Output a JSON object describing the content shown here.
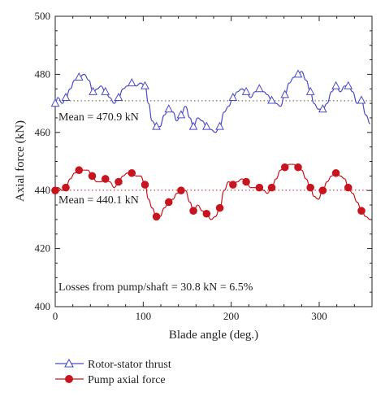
{
  "chart_data": {
    "type": "line",
    "xlabel": "Blade angle (deg.)",
    "ylabel": "Axial force (kN)",
    "xlim": [
      0,
      360
    ],
    "ylim": [
      400,
      500
    ],
    "xticks": [
      "0",
      "100",
      "200",
      "300"
    ],
    "yticks": [
      "400",
      "420",
      "440",
      "460",
      "480",
      "500"
    ],
    "grid": false,
    "legend_position": "bottom",
    "annotations": {
      "mean_top": "Mean = 470.9 kN",
      "mean_bottom": "Mean = 440.1 kN",
      "losses": "Losses from pump/shaft = 30.8 kN = 6.5%"
    },
    "mean_lines": [
      470.9,
      440.1
    ],
    "series": [
      {
        "name": "Rotor-stator thrust",
        "color": "#4a4ac8",
        "marker": "triangle",
        "x": [
          0,
          3,
          8,
          12,
          17,
          22,
          27,
          33,
          38,
          43,
          48,
          52,
          57,
          62,
          67,
          72,
          77,
          82,
          87,
          92,
          97,
          102,
          106,
          110,
          115,
          119,
          124,
          129,
          134,
          138,
          143,
          148,
          153,
          157,
          162,
          167,
          172,
          177,
          182,
          187,
          192,
          197,
          202,
          207,
          212,
          217,
          222,
          227,
          232,
          237,
          241,
          246,
          251,
          256,
          261,
          266,
          271,
          276,
          280,
          285,
          290,
          294,
          299,
          304,
          309,
          314,
          319,
          324,
          329,
          333,
          338,
          343,
          348,
          353,
          358
        ],
        "y": [
          470,
          472,
          470,
          472,
          475,
          478,
          479,
          480,
          478,
          474,
          475,
          476,
          474,
          472,
          470,
          472,
          475,
          476,
          477,
          476,
          477,
          476,
          470,
          464,
          462,
          462,
          466,
          468,
          467,
          464,
          466,
          469,
          465,
          462,
          465,
          464,
          462,
          461,
          460,
          462,
          467,
          469,
          472,
          474,
          475,
          474,
          472,
          474,
          475,
          474,
          473,
          471,
          470,
          469,
          473,
          477,
          479,
          480,
          481,
          478,
          474,
          470,
          468,
          468,
          470,
          474,
          476,
          474,
          476,
          476,
          474,
          470,
          471,
          466,
          463
        ]
      },
      {
        "name": "Pump axial force",
        "color": "#c8141e",
        "marker": "circle",
        "x": [
          0,
          3,
          8,
          12,
          17,
          22,
          27,
          32,
          37,
          42,
          47,
          52,
          57,
          62,
          67,
          72,
          77,
          82,
          87,
          92,
          97,
          102,
          106,
          110,
          115,
          119,
          124,
          129,
          134,
          138,
          143,
          148,
          153,
          157,
          162,
          167,
          172,
          177,
          182,
          187,
          192,
          197,
          202,
          207,
          212,
          217,
          222,
          227,
          232,
          237,
          241,
          246,
          251,
          256,
          261,
          266,
          271,
          276,
          280,
          285,
          290,
          294,
          299,
          304,
          309,
          314,
          319,
          324,
          329,
          333,
          338,
          343,
          348,
          353,
          358
        ],
        "y": [
          440,
          441,
          440,
          441,
          444,
          446,
          447,
          447,
          447,
          445,
          443,
          443,
          444,
          443,
          441,
          443,
          445,
          446,
          446,
          445,
          445,
          442,
          437,
          434,
          431,
          431,
          434,
          436,
          437,
          439,
          440,
          440,
          436,
          433,
          435,
          433,
          432,
          430,
          431,
          434,
          440,
          443,
          442,
          443,
          444,
          443,
          441,
          441,
          441,
          440,
          439,
          441,
          444,
          447,
          448,
          449,
          449,
          448,
          447,
          444,
          441,
          438,
          437,
          440,
          443,
          445,
          446,
          445,
          444,
          441,
          439,
          436,
          433,
          431,
          430
        ]
      }
    ]
  }
}
